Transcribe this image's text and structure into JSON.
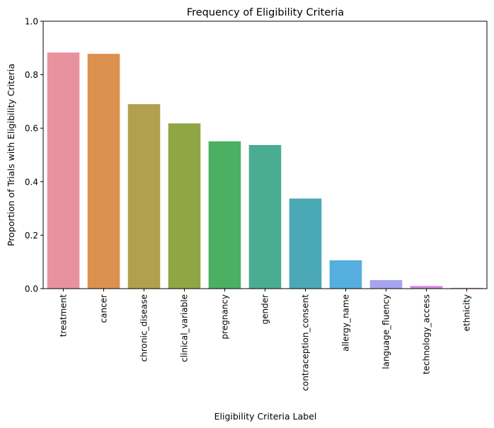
{
  "chart_data": {
    "type": "bar",
    "title": "Frequency of Eligibility Criteria",
    "xlabel": "Eligibility Criteria Label",
    "ylabel": "Proportion of Trials with Eligibility Criteria",
    "ylim": [
      0,
      1.0
    ],
    "yticks": [
      "0.0",
      "0.2",
      "0.4",
      "0.6",
      "0.8",
      "1.0"
    ],
    "categories": [
      "treatment",
      "cancer",
      "chronic_disease",
      "clinical_variable",
      "pregnancy",
      "gender",
      "contraception_consent",
      "allergy_name",
      "language_fluency",
      "technology_access",
      "ethnicity"
    ],
    "values": [
      0.883,
      0.878,
      0.69,
      0.618,
      0.551,
      0.537,
      0.337,
      0.106,
      0.032,
      0.01,
      0.003
    ],
    "colors": [
      "#e8929f",
      "#dd914e",
      "#b1a04e",
      "#8ea644",
      "#4cb064",
      "#4aac93",
      "#4ba8b5",
      "#55aede",
      "#a6a4ef",
      "#db86e8",
      "#e88ecd"
    ],
    "grid": false,
    "legend": "none"
  }
}
